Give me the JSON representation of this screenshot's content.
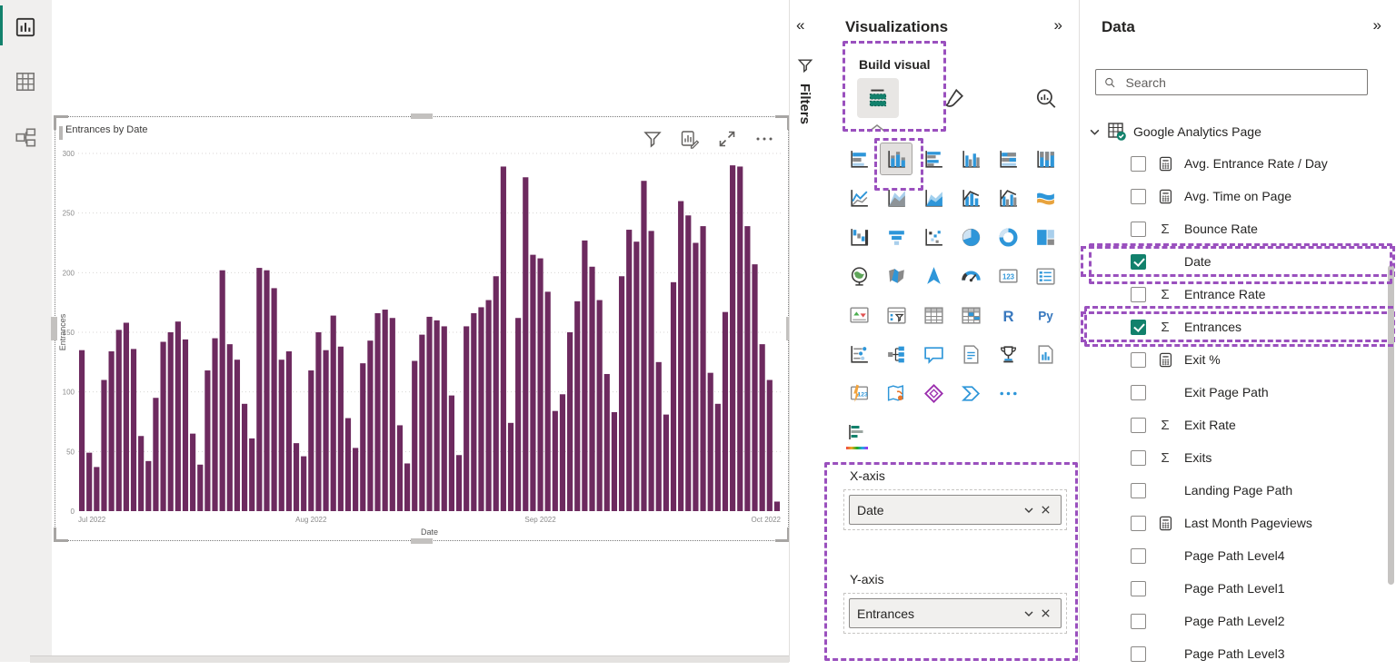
{
  "colors": {
    "bar": "#6D2A5F",
    "green": "#12816C",
    "annotation": "#9A50BE",
    "icon_blue": "#2E96D9",
    "icon_gray": "#7a7a7a"
  },
  "nav_rail": {
    "items": [
      {
        "name": "report-view",
        "selected": true
      },
      {
        "name": "table-view",
        "selected": false
      },
      {
        "name": "model-view",
        "selected": false
      }
    ]
  },
  "visual": {
    "title": "Entrances by Date",
    "header_icons": [
      "filter-icon",
      "chart-edit-icon",
      "focus-mode-icon",
      "more-options-icon"
    ]
  },
  "chart_data": {
    "type": "bar",
    "title": "Entrances by Date",
    "xlabel": "Date",
    "ylabel": "Entrances",
    "ylim": [
      0,
      300
    ],
    "yticks": [
      0,
      50,
      100,
      150,
      200,
      250,
      300
    ],
    "x_labels": [
      "Jul 2022",
      "Aug 2022",
      "Sep 2022",
      "Oct 2022"
    ],
    "month_start_indices": [
      0,
      31,
      62,
      92
    ],
    "granularity": "daily",
    "grid": true,
    "bar_color": "#6D2A5F",
    "values": [
      135,
      49,
      37,
      110,
      134,
      152,
      158,
      136,
      63,
      42,
      95,
      142,
      150,
      159,
      144,
      65,
      39,
      118,
      145,
      202,
      140,
      127,
      90,
      61,
      204,
      202,
      187,
      127,
      134,
      57,
      46,
      118,
      150,
      135,
      164,
      138,
      78,
      53,
      124,
      143,
      166,
      169,
      162,
      72,
      40,
      126,
      148,
      163,
      160,
      155,
      97,
      47,
      155,
      166,
      171,
      177,
      197,
      289,
      74,
      162,
      280,
      215,
      212,
      184,
      84,
      98,
      150,
      176,
      227,
      205,
      177,
      115,
      83,
      197,
      236,
      226,
      277,
      235,
      125,
      81,
      192,
      260,
      248,
      225,
      239,
      116,
      90,
      167,
      290,
      289,
      239,
      207,
      140,
      110,
      8
    ]
  },
  "filters_pane": {
    "collapse_icon": "«",
    "title": "Filters"
  },
  "visualizations_pane": {
    "title": "Visualizations",
    "expand_icon": "»",
    "build_visual_label": "Build visual",
    "tabs": [
      {
        "name": "build-visual-tab",
        "selected": true
      },
      {
        "name": "format-visual-tab"
      },
      {
        "name": "analytics-tab"
      }
    ],
    "gallery": [
      {
        "name": "stacked-bar-chart",
        "glyph": "hbars"
      },
      {
        "name": "stacked-column-chart",
        "glyph": "stackedcols",
        "selected": true
      },
      {
        "name": "clustered-bar-chart",
        "glyph": "hbars2"
      },
      {
        "name": "clustered-column-chart",
        "glyph": "cols2"
      },
      {
        "name": "hundred-stacked-bar-chart",
        "glyph": "hbars3"
      },
      {
        "name": "hundred-stacked-column-chart",
        "glyph": "cols3"
      },
      {
        "name": "line-chart",
        "glyph": "line"
      },
      {
        "name": "area-chart",
        "glyph": "area"
      },
      {
        "name": "stacked-area-chart",
        "glyph": "area2"
      },
      {
        "name": "line-and-stacked-column-chart",
        "glyph": "combo1"
      },
      {
        "name": "line-and-clustered-column-chart",
        "glyph": "combo2"
      },
      {
        "name": "ribbon-chart",
        "glyph": "ribbon"
      },
      {
        "name": "waterfall-chart",
        "glyph": "waterfall"
      },
      {
        "name": "funnel-chart",
        "glyph": "funnel"
      },
      {
        "name": "scatter-chart",
        "glyph": "scatter"
      },
      {
        "name": "pie-chart",
        "glyph": "pie"
      },
      {
        "name": "donut-chart",
        "glyph": "donut"
      },
      {
        "name": "treemap",
        "glyph": "treemap"
      },
      {
        "name": "map",
        "glyph": "globe"
      },
      {
        "name": "filled-map",
        "glyph": "filledmap"
      },
      {
        "name": "azure-map",
        "glyph": "azuremap"
      },
      {
        "name": "gauge",
        "glyph": "gauge"
      },
      {
        "name": "card",
        "glyph": "card123"
      },
      {
        "name": "multi-row-card",
        "glyph": "multirow"
      },
      {
        "name": "kpi",
        "glyph": "kpi"
      },
      {
        "name": "slicer",
        "glyph": "slicer"
      },
      {
        "name": "table",
        "glyph": "tablegrid"
      },
      {
        "name": "matrix",
        "glyph": "matrixgrid"
      },
      {
        "name": "r-script-visual",
        "glyph": "textR"
      },
      {
        "name": "python-visual",
        "glyph": "textPy"
      },
      {
        "name": "key-influencers",
        "glyph": "influencers"
      },
      {
        "name": "decomposition-tree",
        "glyph": "dectree"
      },
      {
        "name": "qa-visual",
        "glyph": "qa"
      },
      {
        "name": "smart-narrative",
        "glyph": "narrative"
      },
      {
        "name": "metrics",
        "glyph": "trophy"
      },
      {
        "name": "paginated-report",
        "glyph": "paginated"
      },
      {
        "name": "power-bi-card",
        "glyph": "bolt123"
      },
      {
        "name": "arcgis-map",
        "glyph": "arcgis"
      },
      {
        "name": "power-apps",
        "glyph": "powerapps"
      },
      {
        "name": "power-automate",
        "glyph": "automate"
      },
      {
        "name": "get-more-visuals",
        "glyph": "ellipsis"
      }
    ],
    "x_axis": {
      "label": "X-axis",
      "field": "Date"
    },
    "y_axis": {
      "label": "Y-axis",
      "field": "Entrances"
    }
  },
  "data_pane": {
    "title": "Data",
    "expand_icon": "»",
    "search_placeholder": "Search",
    "table": {
      "name": "Google Analytics Page",
      "expanded": true
    },
    "fields": [
      {
        "label": "Avg. Entrance Rate / Day",
        "icon": "calculator",
        "checked": false
      },
      {
        "label": "Avg. Time on Page",
        "icon": "calculator",
        "checked": false
      },
      {
        "label": "Bounce Rate",
        "icon": "sigma",
        "checked": false
      },
      {
        "label": "Date",
        "icon": "none",
        "checked": true,
        "annotated": true
      },
      {
        "label": "Entrance Rate",
        "icon": "sigma",
        "checked": false
      },
      {
        "label": "Entrances",
        "icon": "sigma",
        "checked": true,
        "annotated": true
      },
      {
        "label": "Exit %",
        "icon": "calculator",
        "checked": false
      },
      {
        "label": "Exit Page Path",
        "icon": "none",
        "checked": false
      },
      {
        "label": "Exit Rate",
        "icon": "sigma",
        "checked": false
      },
      {
        "label": "Exits",
        "icon": "sigma",
        "checked": false
      },
      {
        "label": "Landing Page Path",
        "icon": "none",
        "checked": false
      },
      {
        "label": "Last Month Pageviews",
        "icon": "calculator",
        "checked": false
      },
      {
        "label": "Page Path Level4",
        "icon": "none",
        "checked": false
      },
      {
        "label": "Page Path Level1",
        "icon": "none",
        "checked": false
      },
      {
        "label": "Page Path Level2",
        "icon": "none",
        "checked": false
      },
      {
        "label": "Page Path Level3",
        "icon": "none",
        "checked": false
      }
    ]
  }
}
